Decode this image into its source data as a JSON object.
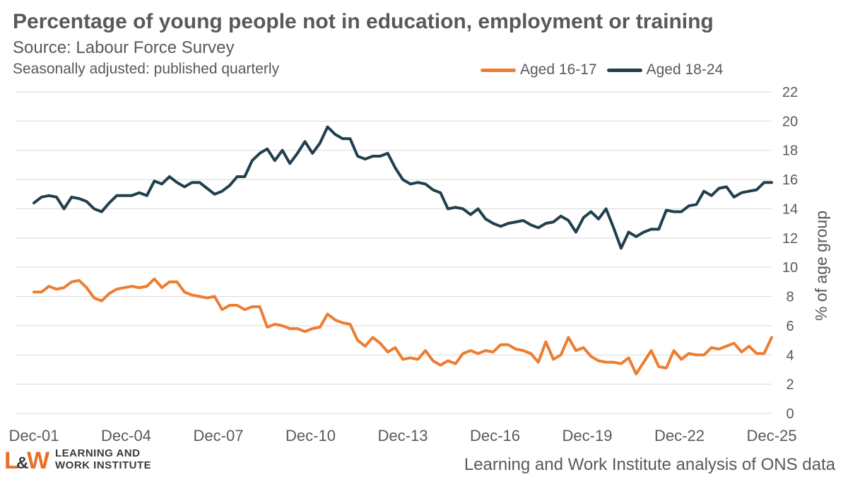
{
  "header": {
    "title": "Percentage of young people not in education, employment or training",
    "subtitle": "Source: Labour Force Survey",
    "note": "Seasonally adjusted: published quarterly"
  },
  "footer": {
    "logo_line1": "LEARNING AND",
    "logo_line2": "WORK INSTITUTE",
    "credit": "Learning and Work Institute analysis of ONS data"
  },
  "colors": {
    "series1": "#ED7D31",
    "series2": "#213F4D",
    "grid": "#D9D9D9",
    "logo_orange": "#E8702A"
  },
  "chart_data": {
    "type": "line",
    "title": "Percentage of young people not in education, employment or training",
    "ylabel": "% of age group",
    "xlabel": "",
    "ylim": [
      0,
      22
    ],
    "yticks": [
      0,
      2,
      4,
      6,
      8,
      10,
      12,
      14,
      16,
      18,
      20,
      22
    ],
    "y_axis_position": "right",
    "grid": "horizontal",
    "legend": "top-right",
    "xticklabels": [
      "Dec-01",
      "Dec-04",
      "Dec-07",
      "Dec-10",
      "Dec-13",
      "Dec-16",
      "Dec-19",
      "Dec-22",
      "Dec-25"
    ],
    "x_period": "quarterly, Oct-Dec 2001 to Oct-Dec 2025",
    "series": [
      {
        "name": "Aged 16-17",
        "color": "#ED7D31",
        "values": [
          8.3,
          8.3,
          8.7,
          8.5,
          8.6,
          9.0,
          9.1,
          8.6,
          7.9,
          7.7,
          8.2,
          8.5,
          8.6,
          8.7,
          8.6,
          8.7,
          9.2,
          8.6,
          9.0,
          9.0,
          8.3,
          8.1,
          8.0,
          7.9,
          8.0,
          7.1,
          7.4,
          7.4,
          7.1,
          7.3,
          7.3,
          5.9,
          6.1,
          6.0,
          5.8,
          5.8,
          5.6,
          5.8,
          5.9,
          6.8,
          6.4,
          6.2,
          6.1,
          5.0,
          4.6,
          5.2,
          4.8,
          4.2,
          4.5,
          3.7,
          3.8,
          3.7,
          4.3,
          3.6,
          3.3,
          3.6,
          3.4,
          4.1,
          4.3,
          4.1,
          4.3,
          4.2,
          4.7,
          4.7,
          4.4,
          4.3,
          4.1,
          3.5,
          4.9,
          3.7,
          4.0,
          5.2,
          4.3,
          4.5,
          3.9,
          3.6,
          3.5,
          3.5,
          3.4,
          3.8,
          2.7,
          3.5,
          4.3,
          3.2,
          3.1,
          4.3,
          3.7,
          4.1,
          4.0,
          4.0,
          4.5,
          4.4,
          4.6,
          4.8,
          4.2,
          4.6,
          4.1,
          4.1,
          5.2
        ]
      },
      {
        "name": "Aged 18-24",
        "color": "#213F4D",
        "values": [
          14.4,
          14.8,
          14.9,
          14.8,
          14.0,
          14.8,
          14.7,
          14.5,
          14.0,
          13.8,
          14.4,
          14.9,
          14.9,
          14.9,
          15.1,
          14.9,
          15.9,
          15.7,
          16.2,
          15.8,
          15.5,
          15.8,
          15.8,
          15.4,
          15.0,
          15.2,
          15.6,
          16.2,
          16.2,
          17.3,
          17.8,
          18.1,
          17.3,
          18.0,
          17.1,
          17.8,
          18.6,
          17.8,
          18.5,
          19.6,
          19.1,
          18.8,
          18.8,
          17.6,
          17.4,
          17.6,
          17.6,
          17.8,
          16.8,
          16.0,
          15.7,
          15.8,
          15.7,
          15.3,
          15.1,
          14.0,
          14.1,
          14.0,
          13.6,
          14.0,
          13.3,
          13.0,
          12.8,
          13.0,
          13.1,
          13.2,
          12.9,
          12.7,
          13.0,
          13.1,
          13.5,
          13.2,
          12.4,
          13.4,
          13.8,
          13.3,
          14.0,
          12.7,
          11.3,
          12.4,
          12.1,
          12.4,
          12.6,
          12.6,
          13.9,
          13.8,
          13.8,
          14.2,
          14.3,
          15.2,
          14.9,
          15.4,
          15.5,
          14.8,
          15.1,
          15.2,
          15.3,
          15.8,
          15.8
        ]
      }
    ]
  }
}
